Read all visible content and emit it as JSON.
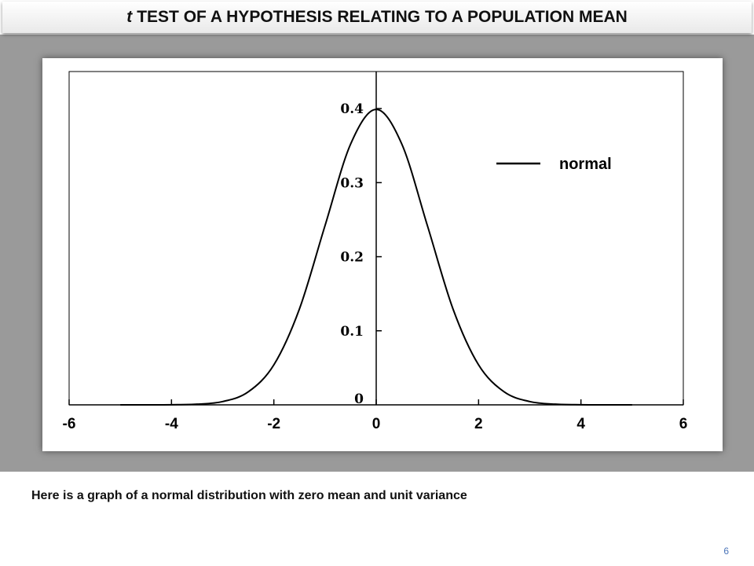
{
  "slide": {
    "title_italic": "t",
    "title_rest": "TEST OF A HYPOTHESIS RELATING TO A POPULATION MEAN",
    "caption": "Here is a graph of a normal distribution with zero mean and unit variance",
    "page_number": "6"
  },
  "chart_data": {
    "type": "line",
    "title": "",
    "xlabel": "",
    "ylabel": "",
    "xlim": [
      -6,
      6
    ],
    "ylim": [
      0,
      0.45
    ],
    "x_ticks": [
      -6,
      -4,
      -2,
      0,
      2,
      4,
      6
    ],
    "x_tick_labels": [
      "-6",
      "-4",
      "-2",
      "0",
      "2",
      "4",
      "6"
    ],
    "y_ticks": [
      0,
      0.1,
      0.2,
      0.3,
      0.4
    ],
    "y_tick_labels": [
      "0",
      "0.1",
      "0.2",
      "0.3",
      "0.4"
    ],
    "grid": false,
    "legend_position": "top-right",
    "series": [
      {
        "name": "normal",
        "color": "#000000",
        "x": [
          -5,
          -4.5,
          -4,
          -3.5,
          -3,
          -2.5,
          -2,
          -1.5,
          -1,
          -0.5,
          0,
          0.5,
          1,
          1.5,
          2,
          2.5,
          3,
          3.5,
          4,
          4.5,
          5
        ],
        "y": [
          1.5e-06,
          1.6e-05,
          0.000134,
          0.000873,
          0.004432,
          0.017528,
          0.053991,
          0.129518,
          0.241971,
          0.352065,
          0.398942,
          0.352065,
          0.241971,
          0.129518,
          0.053991,
          0.017528,
          0.004432,
          0.000873,
          0.000134,
          1.6e-05,
          1.5e-06
        ]
      }
    ]
  }
}
